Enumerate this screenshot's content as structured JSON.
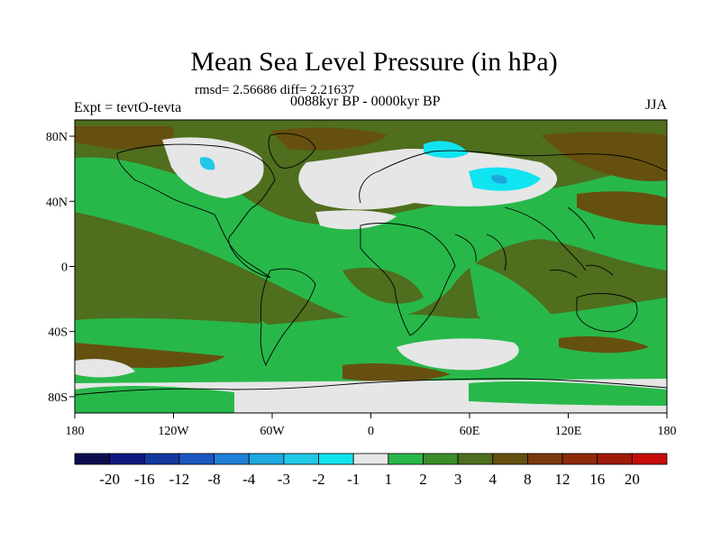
{
  "title": "Mean Sea Level Pressure (in hPa)",
  "stats_label": "rmsd= 2.56686 diff= 2.21637",
  "experiment_label": "Expt = tevtO-tevta",
  "subtitle": "0088kyr BP - 0000kyr BP",
  "season": "JJA",
  "map": {
    "lon_ticks": [
      "180",
      "120W",
      "60W",
      "0",
      "60E",
      "120E",
      "180"
    ],
    "lat_ticks": [
      "80N",
      "40N",
      "0",
      "40S",
      "80S"
    ],
    "lat_values": [
      80,
      40,
      0,
      -40,
      -80
    ],
    "lon_range": [
      -180,
      180
    ],
    "lat_range": [
      -90,
      90
    ]
  },
  "colorbar": {
    "labels": [
      "-20",
      "-16",
      "-12",
      "-8",
      "-4",
      "-3",
      "-2",
      "-1",
      "1",
      "2",
      "3",
      "4",
      "8",
      "12",
      "16",
      "20"
    ],
    "colors": [
      "#0d0b4f",
      "#0f1880",
      "#1238a0",
      "#1a57c0",
      "#1e7fd6",
      "#1ea7e0",
      "#22c8e8",
      "#10e4f0",
      "#e6e6e6",
      "#28b84a",
      "#3a8e2a",
      "#4f6e1e",
      "#66500f",
      "#7a3a0c",
      "#8e2a0a",
      "#a01a08",
      "#c80c08"
    ]
  },
  "legend_colors": {
    "white": "#e6e6e6",
    "light_green": "#28b84a",
    "olive": "#4f6e1e",
    "brown": "#66500f",
    "cyan": "#10e4f0"
  }
}
